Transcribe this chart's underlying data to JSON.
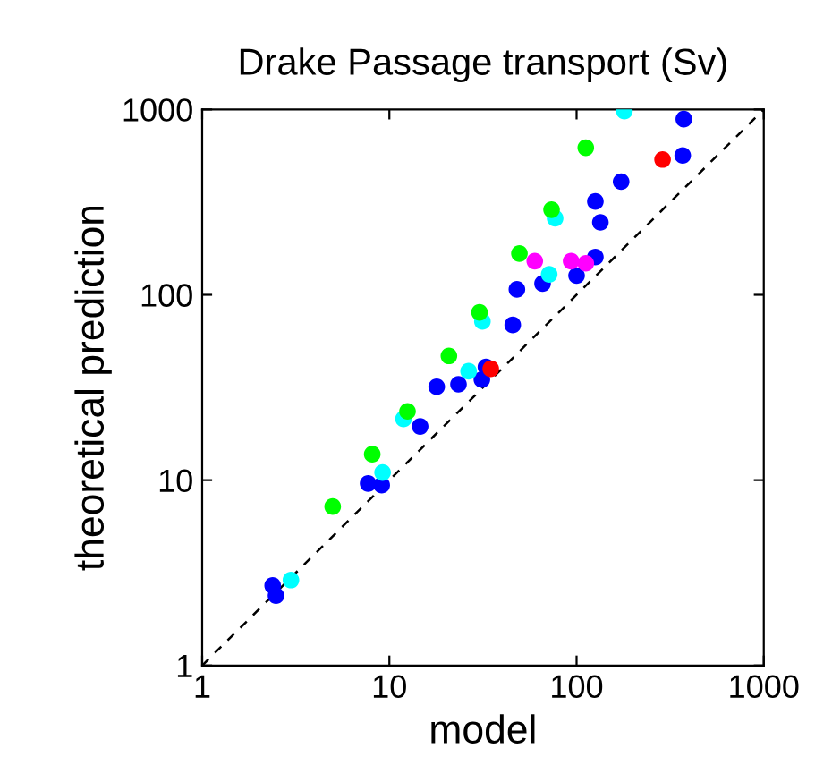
{
  "chart_data": {
    "type": "scatter",
    "title": "Drake Passage transport (Sv)",
    "xlabel": "model",
    "ylabel": "theoretical prediction",
    "log": "xy",
    "xlim": [
      1,
      1000
    ],
    "ylim": [
      1,
      1000
    ],
    "xticks": [
      1,
      10,
      100,
      1000
    ],
    "yticks": [
      1,
      10,
      100,
      1000
    ],
    "grid": false,
    "legend": false,
    "marker": "circle",
    "series": [
      {
        "color": "#0000ff",
        "x": [
          374,
          369,
          173,
          126,
          134,
          126,
          100,
          65.8,
          48,
          45.6,
          32.8,
          31.2,
          23.4,
          17.9,
          14.6,
          7.7,
          9.1,
          2.38,
          2.48
        ],
        "values": [
          887,
          565,
          408,
          319,
          246,
          160,
          127,
          115,
          107,
          68.8,
          40.8,
          34.9,
          32.9,
          31.9,
          19.5,
          9.6,
          9.4,
          2.7,
          2.38
        ]
      },
      {
        "color": "#00ffff",
        "x": [
          180,
          76.8,
          71.4,
          31.4,
          26.5,
          11.9,
          9.2,
          2.98
        ],
        "values": [
          980,
          259,
          129,
          71.9,
          38.7,
          21.4,
          11.0,
          2.89
        ]
      },
      {
        "color": "#00ff00",
        "x": [
          112,
          73.5,
          49.5,
          30.3,
          20.8,
          12.5,
          8.1,
          4.98
        ],
        "values": [
          622,
          288,
          167,
          80.4,
          46.8,
          23.5,
          13.8,
          7.2
        ]
      },
      {
        "color": "#ff00ff",
        "x": [
          59.8,
          93.5,
          112
        ],
        "values": [
          152,
          152,
          148
        ]
      },
      {
        "color": "#ff0000",
        "x": [
          288,
          34.8
        ],
        "values": [
          537,
          39.9
        ]
      },
      {
        "type": "line",
        "color": "#000000",
        "line_style": "dashed",
        "marker": "none",
        "x": [
          1,
          1000
        ],
        "values": [
          1,
          1000
        ]
      }
    ]
  }
}
